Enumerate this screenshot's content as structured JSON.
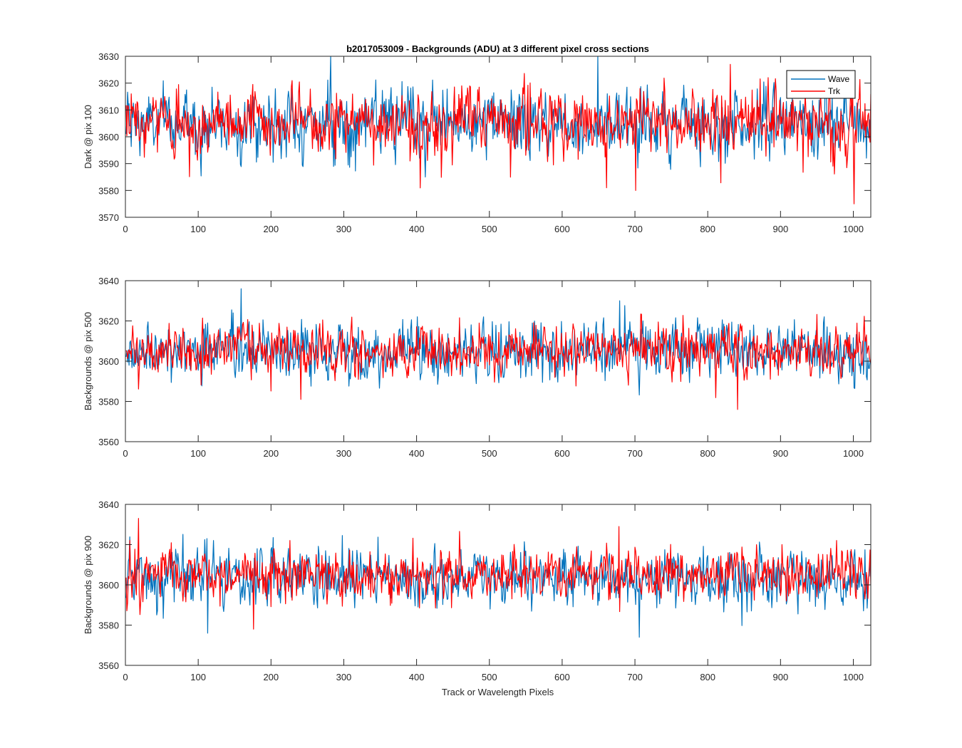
{
  "figure": {
    "title": "b2017053009 - Backgrounds (ADU) at 3 different pixel cross sections",
    "xlabel": "Track or Wavelength Pixels"
  },
  "legend": {
    "placement": "top-right of first subplot",
    "entries": [
      {
        "name": "Wave",
        "color": "#0072BD"
      },
      {
        "name": "Trk",
        "color": "#FF0000"
      }
    ]
  },
  "chart_data": [
    {
      "type": "line",
      "ylabel": "Dark @ pix 100",
      "xlim": [
        0,
        1024
      ],
      "ylim": [
        3570,
        3630
      ],
      "xticks": [
        0,
        100,
        200,
        300,
        400,
        500,
        600,
        700,
        800,
        900,
        1000
      ],
      "yticks": [
        3570,
        3580,
        3590,
        3600,
        3610,
        3620,
        3630
      ],
      "grid": false,
      "series": [
        {
          "name": "Wave",
          "color": "#0072BD",
          "n_points": 1024,
          "approx_mean": 3605,
          "approx_std": 6,
          "range": [
            3585,
            3630
          ]
        },
        {
          "name": "Trk",
          "color": "#FF0000",
          "n_points": 1024,
          "approx_mean": 3605,
          "approx_std": 6,
          "range": [
            3575,
            3628
          ]
        }
      ],
      "notable_points": [
        {
          "series": "Wave",
          "x": 281,
          "y": 3630
        },
        {
          "series": "Wave",
          "x": 648,
          "y": 3630
        },
        {
          "series": "Trk",
          "x": 1000,
          "y": 3575
        },
        {
          "series": "Trk",
          "x": 700,
          "y": 3580
        },
        {
          "series": "Trk",
          "x": 660,
          "y": 3581
        },
        {
          "series": "Trk",
          "x": 830,
          "y": 3627
        }
      ]
    },
    {
      "type": "line",
      "ylabel": "Backgrounds @ pix 500",
      "xlim": [
        0,
        1024
      ],
      "ylim": [
        3560,
        3640
      ],
      "xticks": [
        0,
        100,
        200,
        300,
        400,
        500,
        600,
        700,
        800,
        900,
        1000
      ],
      "yticks": [
        3560,
        3580,
        3600,
        3620,
        3640
      ],
      "grid": false,
      "series": [
        {
          "name": "Wave",
          "color": "#0072BD",
          "n_points": 1024,
          "approx_mean": 3605,
          "approx_std": 7,
          "range": [
            3582,
            3636
          ]
        },
        {
          "name": "Trk",
          "color": "#FF0000",
          "n_points": 1024,
          "approx_mean": 3605,
          "approx_std": 6,
          "range": [
            3576,
            3626
          ]
        }
      ],
      "notable_points": [
        {
          "series": "Wave",
          "x": 158,
          "y": 3636
        },
        {
          "series": "Wave",
          "x": 678,
          "y": 3630
        },
        {
          "series": "Trk",
          "x": 840,
          "y": 3576
        },
        {
          "series": "Trk",
          "x": 240,
          "y": 3581
        }
      ]
    },
    {
      "type": "line",
      "ylabel": "Backgrounds @ pix 900",
      "xlim": [
        0,
        1024
      ],
      "ylim": [
        3560,
        3640
      ],
      "xticks": [
        0,
        100,
        200,
        300,
        400,
        500,
        600,
        700,
        800,
        900,
        1000
      ],
      "yticks": [
        3560,
        3580,
        3600,
        3620,
        3640
      ],
      "grid": false,
      "series": [
        {
          "name": "Wave",
          "color": "#0072BD",
          "n_points": 1024,
          "approx_mean": 3603,
          "approx_std": 7,
          "range": [
            3574,
            3628
          ]
        },
        {
          "name": "Trk",
          "color": "#FF0000",
          "n_points": 1024,
          "approx_mean": 3605,
          "approx_std": 6,
          "range": [
            3578,
            3633
          ]
        }
      ],
      "notable_points": [
        {
          "series": "Trk",
          "x": 17,
          "y": 3633
        },
        {
          "series": "Trk",
          "x": 677,
          "y": 3629
        },
        {
          "series": "Wave",
          "x": 705,
          "y": 3574
        },
        {
          "series": "Wave",
          "x": 112,
          "y": 3576
        },
        {
          "series": "Trk",
          "x": 175,
          "y": 3578
        }
      ]
    }
  ]
}
